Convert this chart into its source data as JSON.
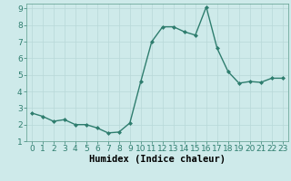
{
  "x": [
    0,
    1,
    2,
    3,
    4,
    5,
    6,
    7,
    8,
    9,
    10,
    11,
    12,
    13,
    14,
    15,
    16,
    17,
    18,
    19,
    20,
    21,
    22,
    23
  ],
  "y": [
    2.7,
    2.5,
    2.2,
    2.3,
    2.0,
    2.0,
    1.8,
    1.5,
    1.55,
    2.1,
    4.6,
    7.0,
    7.9,
    7.9,
    7.6,
    7.4,
    9.1,
    6.6,
    5.2,
    4.5,
    4.6,
    4.55,
    4.8,
    4.8
  ],
  "line_color": "#2e7d6e",
  "marker": "D",
  "marker_size": 2.0,
  "bg_color": "#ceeaea",
  "grid_color": "#b8d8d8",
  "xlabel": "Humidex (Indice chaleur)",
  "xlim": [
    -0.5,
    23.5
  ],
  "ylim": [
    1,
    9.3
  ],
  "yticks": [
    1,
    2,
    3,
    4,
    5,
    6,
    7,
    8,
    9
  ],
  "xticks": [
    0,
    1,
    2,
    3,
    4,
    5,
    6,
    7,
    8,
    9,
    10,
    11,
    12,
    13,
    14,
    15,
    16,
    17,
    18,
    19,
    20,
    21,
    22,
    23
  ],
  "tick_label_fontsize": 6.5,
  "xlabel_fontsize": 7.5,
  "line_width": 1.0
}
